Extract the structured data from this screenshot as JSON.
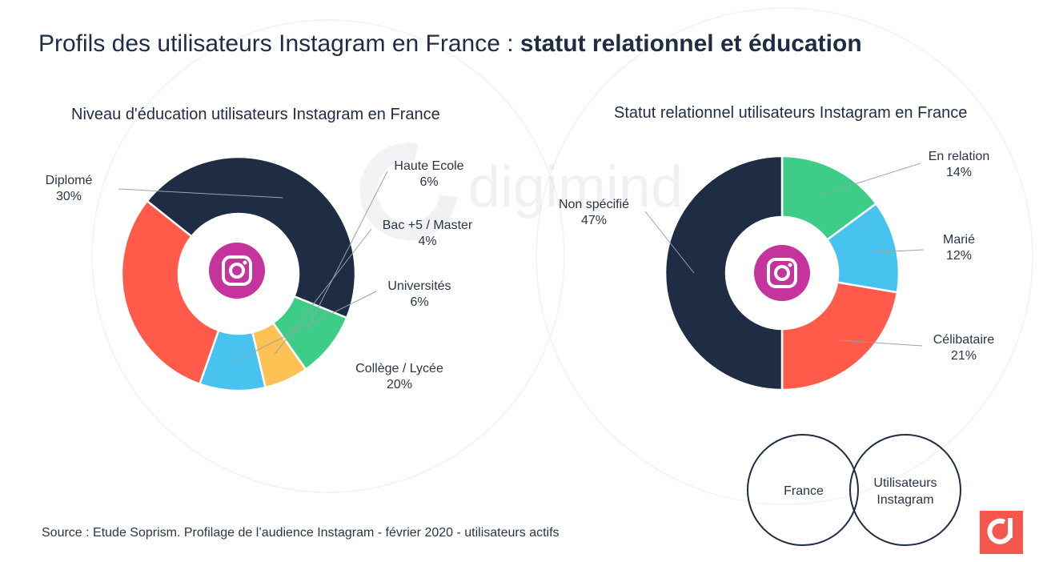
{
  "header": {
    "title_regular": "Profils des utilisateurs Instagram en France : ",
    "title_bold": "statut relationnel et éducation"
  },
  "watermark": "digimind",
  "colors": {
    "navy": "#1f2d44",
    "green": "#3dcd87",
    "yellow": "#fdc253",
    "blue": "#48c3f0",
    "red": "#ff5a4a",
    "instagram": "#c4349c",
    "brand": "#f5574d"
  },
  "chart_data": [
    {
      "type": "pie",
      "title": "Niveau d'éducation  utilisateurs Instagram en France",
      "slices": [
        {
          "name": "Diplomé",
          "value": 30,
          "label": "30%",
          "color": "#1f2d44"
        },
        {
          "name": "Haute Ecole",
          "value": 6,
          "label": "6%",
          "color": "#3dcd87"
        },
        {
          "name": "Bac +5 / Master",
          "value": 4,
          "label": "4%",
          "color": "#fdc253"
        },
        {
          "name": "Universités",
          "value": 6,
          "label": "6%",
          "color": "#48c3f0"
        },
        {
          "name": "Collège / Lycée",
          "value": 20,
          "label": "20%",
          "color": "#ff5a4a"
        }
      ]
    },
    {
      "type": "pie",
      "title": "Statut relationnel utilisateurs Instagram en France",
      "slices": [
        {
          "name": "En relation",
          "value": 14,
          "label": "14%",
          "color": "#3dcd87"
        },
        {
          "name": "Marié",
          "value": 12,
          "label": "12%",
          "color": "#48c3f0"
        },
        {
          "name": "Célibataire",
          "value": 21,
          "label": "21%",
          "color": "#ff5a4a"
        },
        {
          "name": "Non spécifié",
          "value": 47,
          "label": "47%",
          "color": "#1f2d44"
        }
      ]
    }
  ],
  "venn": {
    "left": "France",
    "right_line1": "Utilisateurs",
    "right_line2": "Instagram"
  },
  "footer": {
    "source": "Source :  Etude Soprism. Profilage de l’audience Instagram  - février 2020  - utilisateurs actifs"
  }
}
